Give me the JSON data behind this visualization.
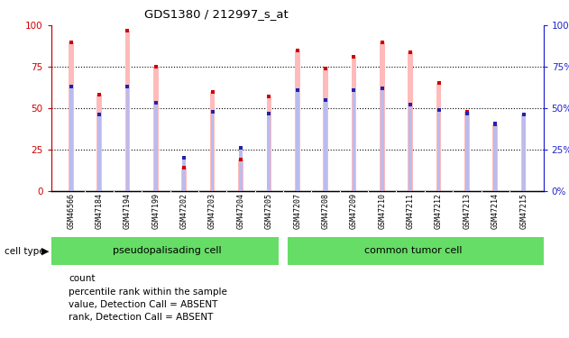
{
  "title": "GDS1380 / 212997_s_at",
  "samples": [
    "GSM46566",
    "GSM47184",
    "GSM47194",
    "GSM47199",
    "GSM47202",
    "GSM47203",
    "GSM47204",
    "GSM47205",
    "GSM47207",
    "GSM47208",
    "GSM47209",
    "GSM47210",
    "GSM47211",
    "GSM47212",
    "GSM47213",
    "GSM47214",
    "GSM47215"
  ],
  "pink_values": [
    90,
    58,
    97,
    75,
    14,
    60,
    19,
    57,
    85,
    74,
    81,
    90,
    84,
    65,
    48,
    40,
    46
  ],
  "blue_values": [
    63,
    46,
    63,
    53,
    20,
    48,
    26,
    47,
    61,
    55,
    61,
    62,
    52,
    49,
    47,
    41,
    46
  ],
  "group1_count": 8,
  "group2_count": 9,
  "ylim": [
    0,
    100
  ],
  "yticks": [
    0,
    25,
    50,
    75,
    100
  ],
  "bar_color_pink": "#ffbbbb",
  "bar_color_blue": "#bbbbee",
  "dot_color_red": "#cc0000",
  "dot_color_blue": "#2222aa",
  "axis_left_color": "#cc0000",
  "axis_right_color": "#2222cc",
  "bg_xtick": "#d0d0d0",
  "cell_type_label": "cell type",
  "group1_label": "pseudopalisading cell",
  "group2_label": "common tumor cell",
  "cell_color": "#66dd66",
  "legend_items": [
    {
      "color": "#cc0000",
      "label": "count"
    },
    {
      "color": "#2222aa",
      "label": "percentile rank within the sample"
    },
    {
      "color": "#ffbbbb",
      "label": "value, Detection Call = ABSENT"
    },
    {
      "color": "#bbbbee",
      "label": "rank, Detection Call = ABSENT"
    }
  ]
}
